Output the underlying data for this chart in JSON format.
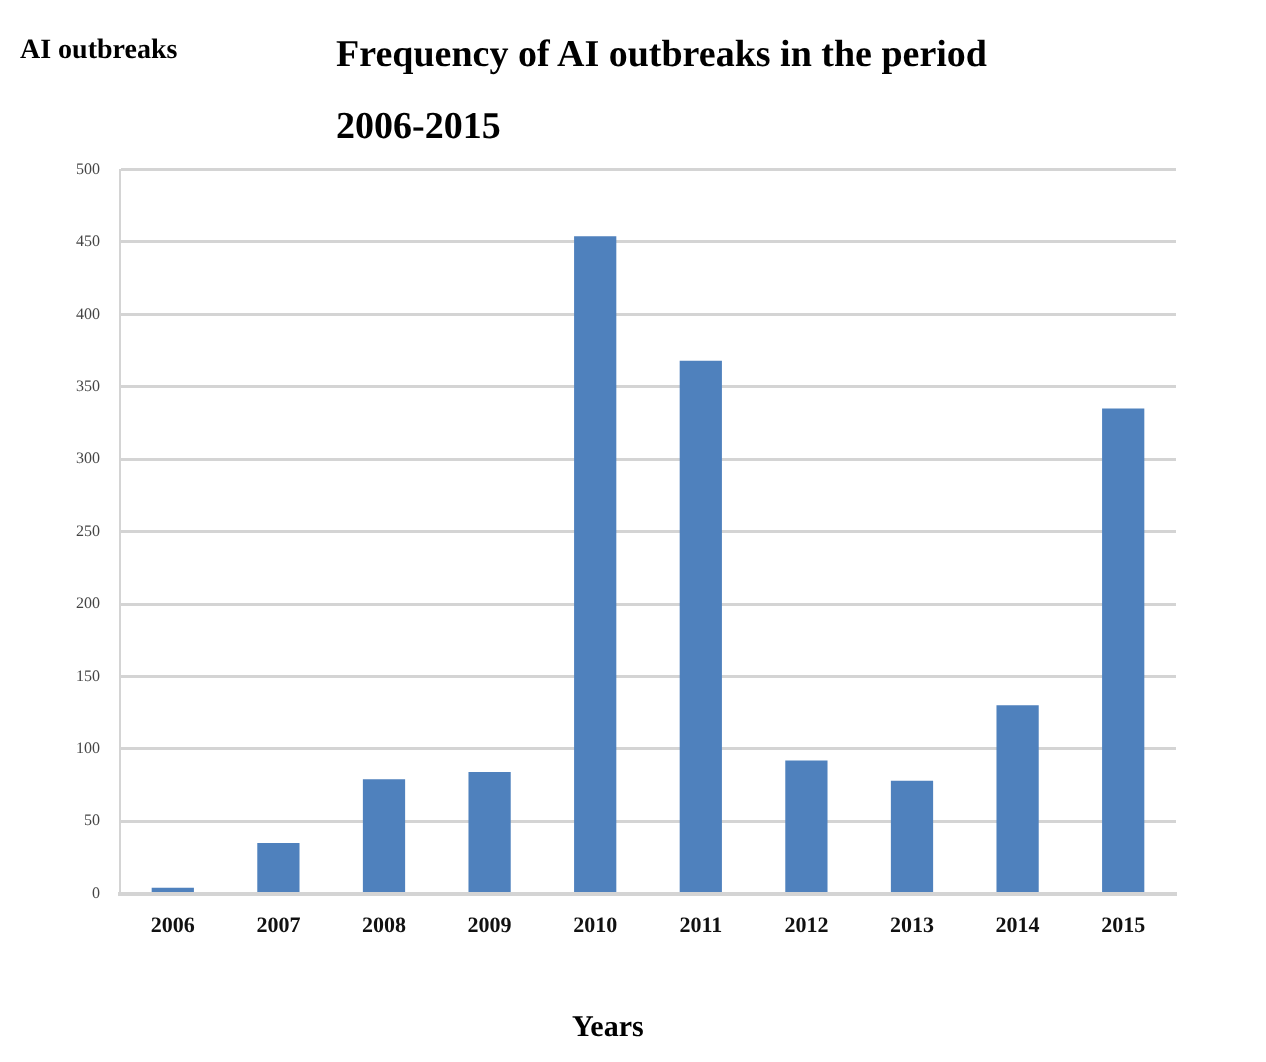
{
  "chart_data": {
    "type": "bar",
    "title": "Frequency of AI outbreaks in the period 2006-2015",
    "ylabel": "AI outbreaks",
    "xlabel": "Years",
    "categories": [
      "2006",
      "2007",
      "2008",
      "2009",
      "2010",
      "2011",
      "2012",
      "2013",
      "2014",
      "2015"
    ],
    "values": [
      4,
      35,
      79,
      84,
      454,
      368,
      92,
      78,
      130,
      335
    ],
    "color": "#4f81bd",
    "ylim": [
      0,
      500
    ],
    "yticks": [
      0,
      50,
      100,
      150,
      200,
      250,
      300,
      350,
      400,
      450,
      500
    ],
    "grid": "y"
  }
}
